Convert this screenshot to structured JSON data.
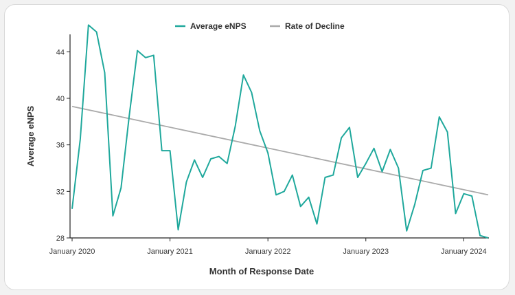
{
  "chart_data": {
    "type": "line",
    "xlabel": "Month of Response Date",
    "ylabel": "Average eNPS",
    "ylim": [
      28,
      46.5
    ],
    "y_ticks": [
      28,
      32,
      36,
      40,
      44
    ],
    "x_ticks": [
      "January 2020",
      "January 2021",
      "January 2022",
      "January 2023",
      "January 2024"
    ],
    "grid": false,
    "legend_position": "top-center",
    "series": [
      {
        "name": "Average eNPS",
        "color": "#1fa89c",
        "x": [
          "2020-01",
          "2020-02",
          "2020-03",
          "2020-04",
          "2020-05",
          "2020-06",
          "2020-07",
          "2020-08",
          "2020-09",
          "2020-10",
          "2020-11",
          "2020-12",
          "2021-01",
          "2021-02",
          "2021-03",
          "2021-04",
          "2021-05",
          "2021-06",
          "2021-07",
          "2021-08",
          "2021-09",
          "2021-10",
          "2021-11",
          "2021-12",
          "2022-01",
          "2022-02",
          "2022-03",
          "2022-04",
          "2022-05",
          "2022-06",
          "2022-07",
          "2022-08",
          "2022-09",
          "2022-10",
          "2022-11",
          "2022-12",
          "2023-01",
          "2023-02",
          "2023-03",
          "2023-04",
          "2023-05",
          "2023-06",
          "2023-07",
          "2023-08",
          "2023-09",
          "2023-10",
          "2023-11",
          "2023-12",
          "2024-01",
          "2024-02",
          "2024-03",
          "2024-04"
        ],
        "values": [
          30.5,
          36.5,
          46.3,
          45.7,
          42.2,
          29.9,
          32.3,
          38.5,
          44.1,
          43.5,
          43.7,
          35.5,
          35.5,
          28.7,
          32.8,
          34.7,
          33.2,
          34.8,
          35.0,
          34.4,
          37.6,
          42.0,
          40.5,
          37.2,
          35.3,
          31.7,
          32.0,
          33.4,
          30.7,
          31.5,
          29.2,
          33.2,
          33.4,
          36.6,
          37.5,
          33.2,
          34.4,
          35.7,
          33.7,
          35.6,
          34.0,
          28.6,
          30.9,
          33.8,
          34.0,
          38.4,
          37.1,
          30.1,
          31.8,
          31.6,
          28.2,
          28.0
        ]
      },
      {
        "name": "Rate of Decline",
        "color": "#aaaaaa",
        "x": [
          "2020-01",
          "2024-04"
        ],
        "values": [
          39.3,
          31.7
        ]
      }
    ]
  }
}
